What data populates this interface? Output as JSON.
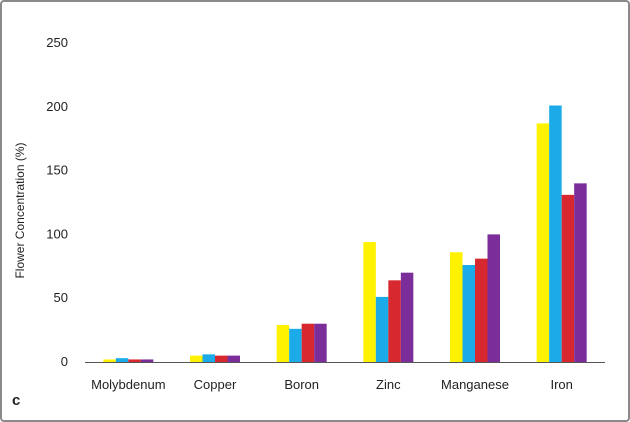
{
  "panel_label": "c",
  "chart_data": {
    "type": "bar",
    "title": "",
    "xlabel": "",
    "ylabel": "Flower Concentration (%)",
    "ylim": [
      0,
      250
    ],
    "yticks": [
      0,
      50,
      100,
      150,
      200,
      250
    ],
    "grid": false,
    "categories": [
      "Molybdenum",
      "Copper",
      "Boron",
      "Zinc",
      "Manganese",
      "Iron"
    ],
    "series": [
      {
        "color": "#FFF200",
        "values": [
          2,
          5,
          29,
          94,
          86,
          187
        ]
      },
      {
        "color": "#1AABE8",
        "values": [
          3,
          6,
          26,
          51,
          76,
          201
        ]
      },
      {
        "color": "#D7282F",
        "values": [
          2,
          5,
          30,
          64,
          81,
          131
        ]
      },
      {
        "color": "#7B2D9A",
        "values": [
          2,
          5,
          30,
          70,
          100,
          140
        ]
      }
    ]
  }
}
